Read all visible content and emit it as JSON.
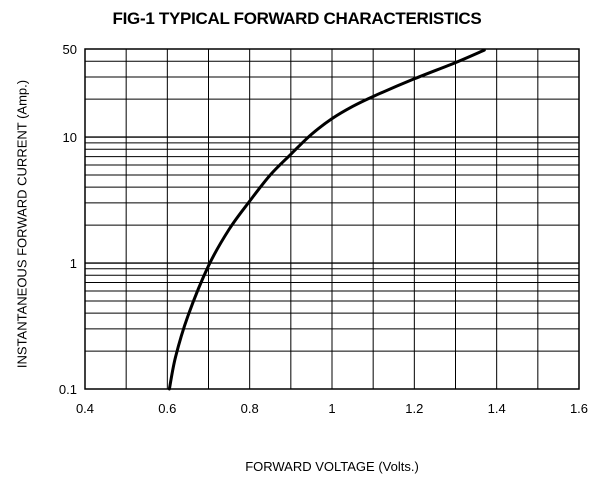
{
  "chart_data": {
    "type": "line",
    "title": "FIG-1 TYPICAL FORWARD CHARACTERISTICS",
    "xlabel": "FORWARD VOLTAGE (Volts.)",
    "ylabel": "INSTANTANEOUS FORWARD CURRENT (Amp.)",
    "xlim": [
      0.4,
      1.6
    ],
    "ylim": [
      0.1,
      50
    ],
    "yscale": "log",
    "x_ticks": [
      0.4,
      0.6,
      0.8,
      1.0,
      1.2,
      1.4,
      1.6
    ],
    "x_tick_labels": [
      "0.4",
      "0.6",
      "0.8",
      "1",
      "1.2",
      "1.4",
      "1.6"
    ],
    "y_ticks": [
      0.1,
      1,
      10,
      50
    ],
    "y_tick_labels": [
      "0.1",
      "1",
      "10",
      "50"
    ],
    "grid": true,
    "series": [
      {
        "x": [
          0.605,
          0.62,
          0.65,
          0.7,
          0.75,
          0.8,
          0.85,
          0.9,
          0.95,
          1.0,
          1.05,
          1.1,
          1.2,
          1.3,
          1.37
        ],
        "y": [
          0.1,
          0.18,
          0.38,
          0.95,
          1.85,
          3.1,
          5.0,
          7.3,
          10.5,
          14.0,
          17.5,
          21.0,
          29.0,
          39.0,
          49.0
        ]
      }
    ],
    "colors": {
      "line": "#000000",
      "grid": "#000000",
      "background": "#ffffff"
    }
  }
}
